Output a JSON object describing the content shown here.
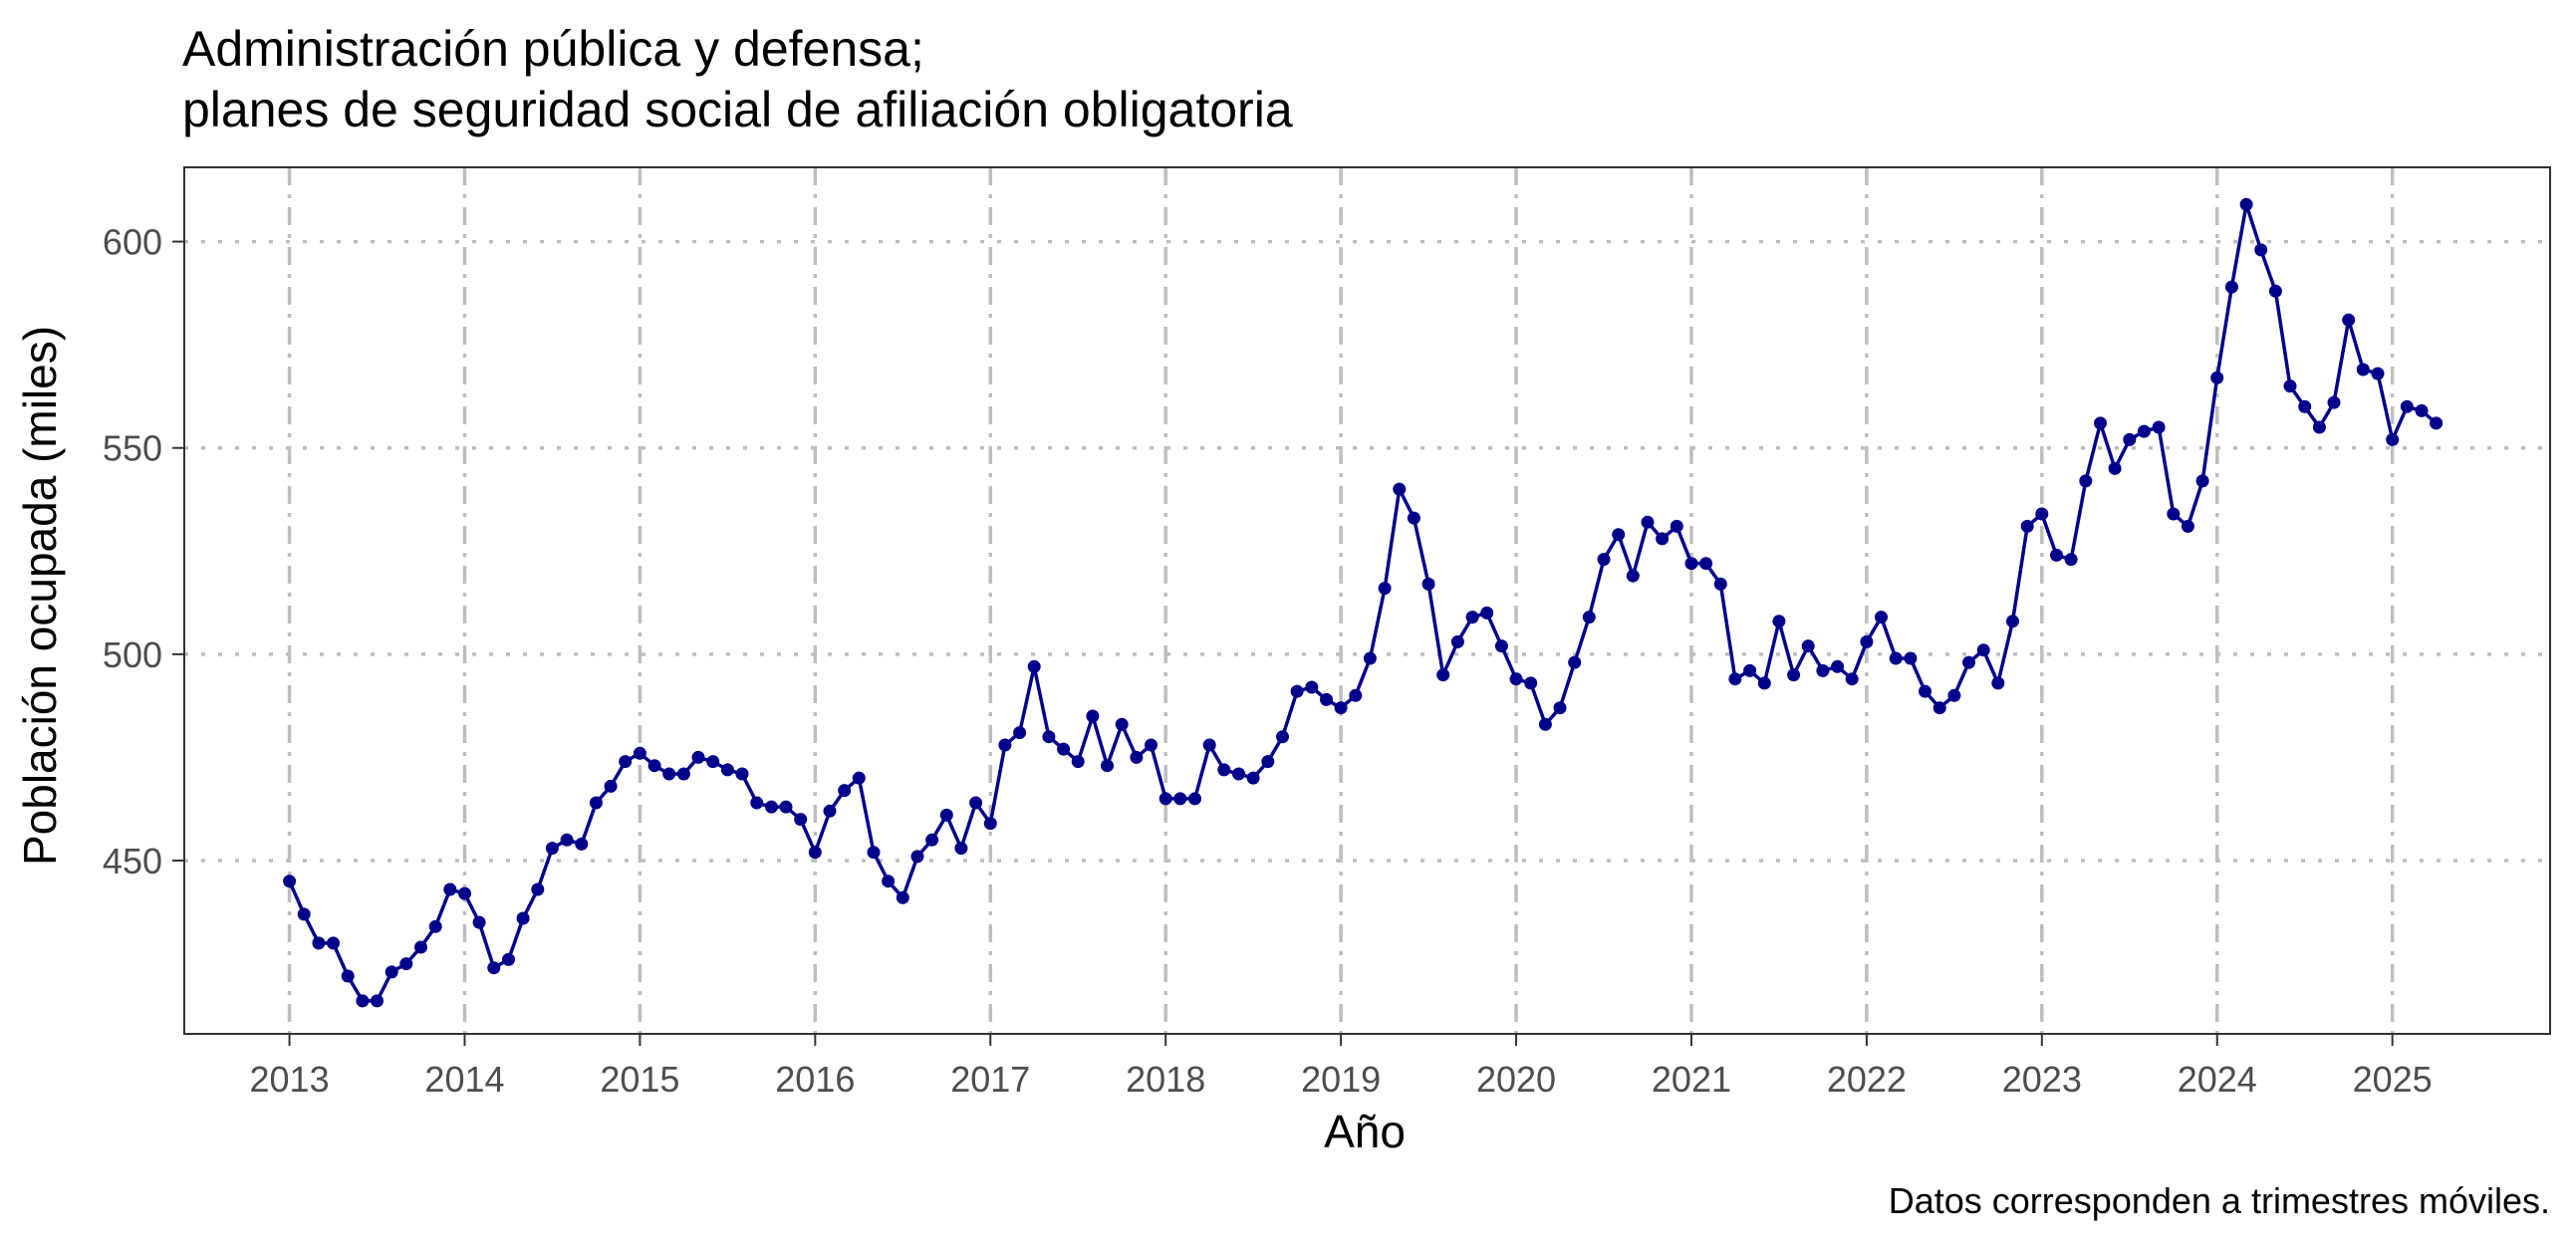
{
  "chart_data": {
    "type": "line",
    "title_lines": [
      "Administración pública y defensa;",
      "planes de seguridad social de afiliación obligatoria"
    ],
    "xlabel": "Año",
    "ylabel": "Población ocupada (miles)",
    "caption": "Datos corresponden a trimestres móviles.",
    "x_ticks": [
      "2013",
      "2014",
      "2015",
      "2016",
      "2017",
      "2018",
      "2019",
      "2020",
      "2021",
      "2022",
      "2023",
      "2024",
      "2025"
    ],
    "x_tick_values": [
      2013,
      2014,
      2015,
      2016,
      2017,
      2018,
      2019,
      2020,
      2021,
      2022,
      2023,
      2024,
      2025
    ],
    "y_ticks": [
      "450",
      "500",
      "550",
      "600"
    ],
    "y_tick_values": [
      450,
      500,
      550,
      600
    ],
    "xlim": [
      2012.4,
      2025.9
    ],
    "ylim": [
      408,
      618
    ],
    "grid": true,
    "legend": "none",
    "series": [
      {
        "color": "#00008B",
        "start": 2013.0,
        "step": 0.0833333,
        "values": [
          445,
          437,
          430,
          430,
          422,
          416,
          416,
          423,
          425,
          429,
          434,
          443,
          442,
          435,
          424,
          426,
          436,
          443,
          453,
          455,
          454,
          464,
          468,
          474,
          476,
          473,
          471,
          471,
          475,
          474,
          472,
          471,
          464,
          463,
          463,
          460,
          452,
          462,
          467,
          470,
          452,
          445,
          441,
          451,
          455,
          461,
          453,
          464,
          459,
          478,
          481,
          497,
          480,
          477,
          474,
          485,
          473,
          483,
          475,
          478,
          465,
          465,
          465,
          478,
          472,
          471,
          470,
          474,
          480,
          491,
          492,
          489,
          487,
          490,
          499,
          516,
          540,
          533,
          517,
          495,
          503,
          509,
          510,
          502,
          494,
          493,
          483,
          487,
          498,
          509,
          523,
          529,
          519,
          532,
          528,
          531,
          522,
          522,
          517,
          494,
          496,
          493,
          508,
          495,
          502,
          496,
          497,
          494,
          503,
          509,
          499,
          499,
          491,
          487,
          490,
          498,
          501,
          493,
          508,
          531,
          534,
          524,
          523,
          542,
          556,
          545,
          552,
          554,
          555,
          534,
          531,
          542,
          567,
          589,
          609,
          598,
          588,
          565,
          560,
          555,
          561,
          581,
          569,
          568,
          552,
          560,
          559,
          556
        ]
      }
    ]
  }
}
